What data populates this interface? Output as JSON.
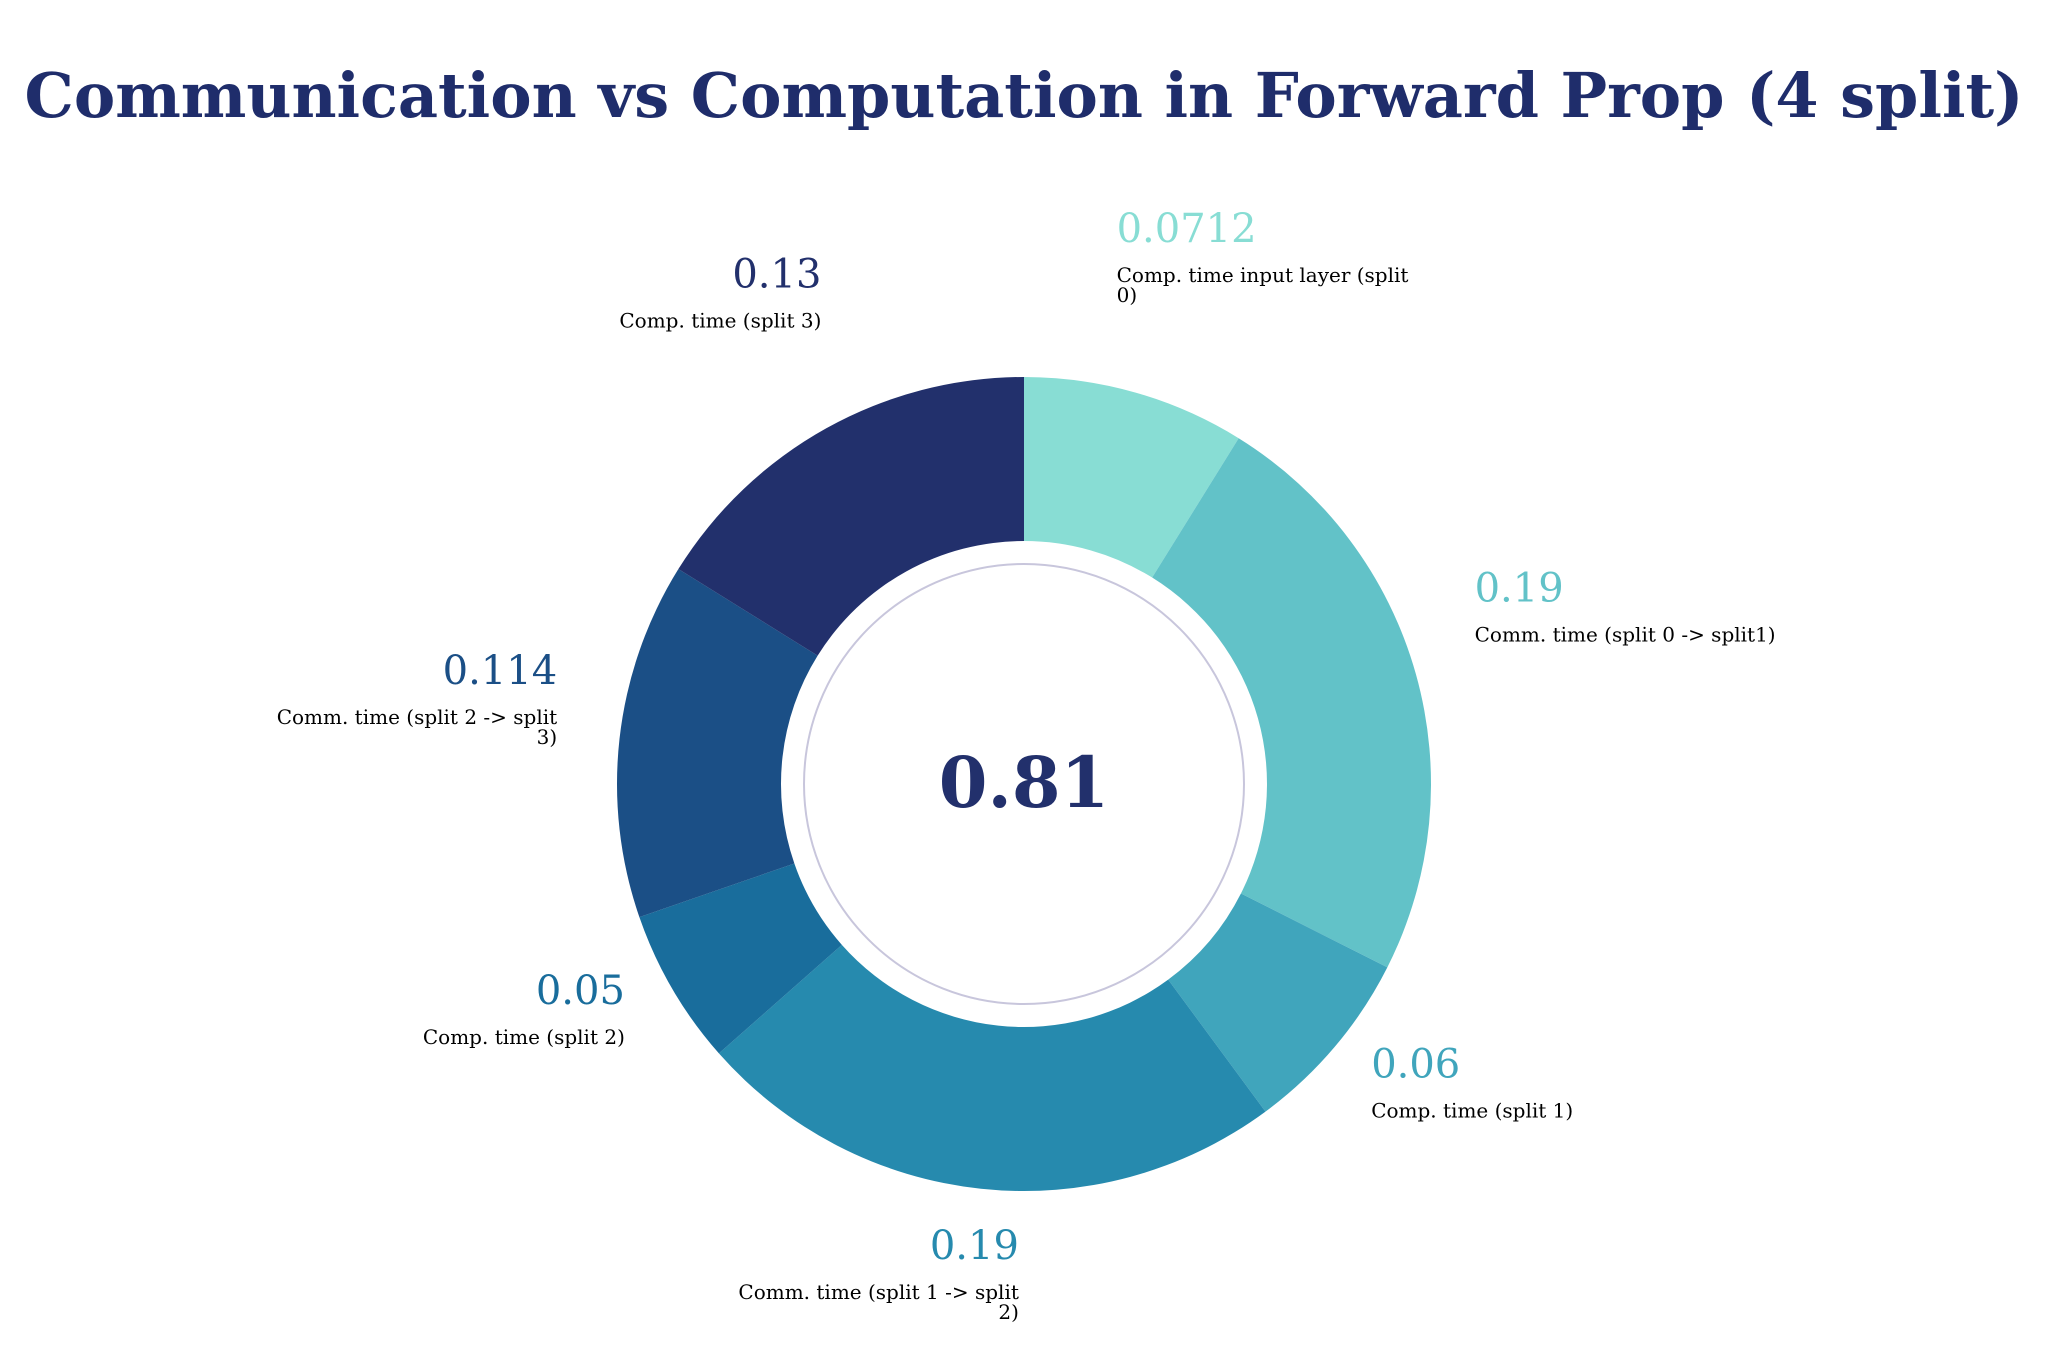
{
  "chart_data": {
    "type": "pie",
    "variant": "donut",
    "title": "Communication vs Computation in Forward Prop (4 split)",
    "total_label": "0.81",
    "direction": "clockwise",
    "start_angle": "top",
    "slices": [
      {
        "value": 0.0712,
        "value_label": "0.0712",
        "name": "Comp. time input layer (split 0)",
        "name_lines": [
          "Comp. time input layer (split",
          "0)"
        ],
        "color": "#88ddd4"
      },
      {
        "value": 0.19,
        "value_label": "0.19",
        "name": "Comm. time (split 0 -> split1)",
        "name_lines": [
          "Comm. time (split 0 -> split1)"
        ],
        "color": "#62c2c8"
      },
      {
        "value": 0.06,
        "value_label": "0.06",
        "name": "Comp. time (split 1)",
        "name_lines": [
          "Comp. time (split 1)"
        ],
        "color": "#40a5bc"
      },
      {
        "value": 0.19,
        "value_label": "0.19",
        "name": "Comm. time (split 1 -> split 2)",
        "name_lines": [
          "Comm. time (split 1 -> split",
          "2)"
        ],
        "color": "#268aae"
      },
      {
        "value": 0.05,
        "value_label": "0.05",
        "name": "Comp. time (split 2)",
        "name_lines": [
          "Comp. time (split 2)"
        ],
        "color": "#196d9c"
      },
      {
        "value": 0.114,
        "value_label": "0.114",
        "name": "Comm. time (split 2 -> split 3)",
        "name_lines": [
          "Comm. time (split 2 -> split",
          "3)"
        ],
        "color": "#1b4f86"
      },
      {
        "value": 0.13,
        "value_label": "0.13",
        "name": "Comp. time (split 3)",
        "name_lines": [
          "Comp. time (split 3)"
        ],
        "color": "#22306c"
      }
    ]
  },
  "colors": {
    "title": "#1f2d6b",
    "center_text": "#22306c",
    "inner_ring": "#c8c6dc",
    "background": "#ffffff"
  }
}
